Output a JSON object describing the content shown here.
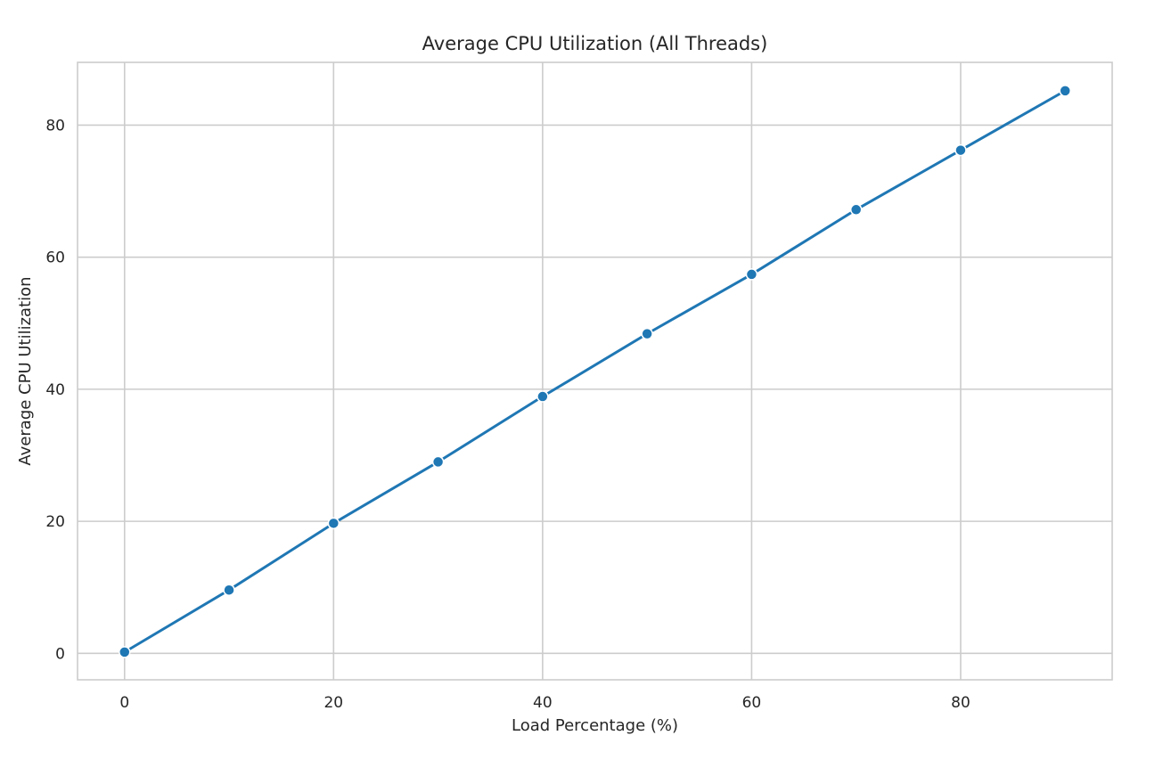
{
  "chart_data": {
    "type": "line",
    "title": "Average CPU Utilization (All Threads)",
    "xlabel": "Load Percentage (%)",
    "ylabel": "Average CPU Utilization",
    "xlim": [
      -4.5,
      94.5
    ],
    "ylim": [
      -4.0,
      89.5
    ],
    "x_ticks": [
      0,
      20,
      40,
      60,
      80
    ],
    "y_ticks": [
      0,
      20,
      40,
      60,
      80
    ],
    "grid": true,
    "legend": "none",
    "series": [
      {
        "color": "#1f77b4",
        "marker": "circle",
        "x": [
          0,
          10,
          20,
          30,
          40,
          50,
          60,
          70,
          80,
          90
        ],
        "y": [
          0.2,
          9.6,
          19.7,
          29.0,
          38.9,
          48.4,
          57.4,
          67.2,
          76.2,
          85.2
        ]
      }
    ]
  }
}
